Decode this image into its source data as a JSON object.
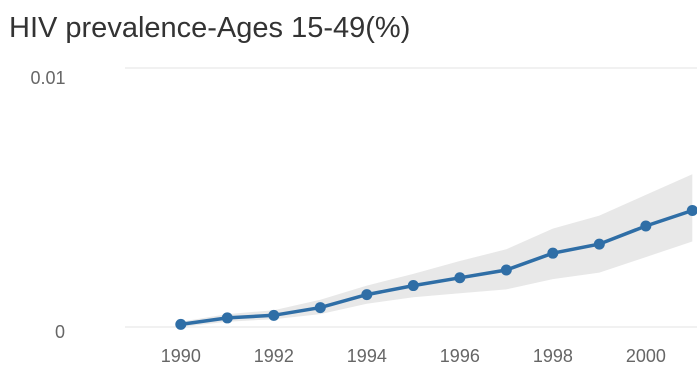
{
  "chart_data": {
    "type": "line",
    "title": "HIV prevalence-Ages 15-49(%)",
    "xlabel": "",
    "ylabel": "",
    "x": [
      1990,
      1991,
      1992,
      1993,
      1994,
      1995,
      1996,
      1997,
      1998,
      1999,
      2000,
      2001
    ],
    "series": [
      {
        "values": [
          0.0001,
          0.00035,
          0.00045,
          0.00075,
          0.00125,
          0.0016,
          0.0019,
          0.0022,
          0.00285,
          0.0032,
          0.0039,
          0.0045
        ],
        "lower": [
          0.0,
          0.0002,
          0.0003,
          0.0005,
          0.0009,
          0.00115,
          0.0013,
          0.00145,
          0.00185,
          0.0021,
          0.0027,
          0.0033
        ],
        "upper": [
          0.0002,
          0.0005,
          0.00065,
          0.00105,
          0.0016,
          0.00205,
          0.00255,
          0.003,
          0.0038,
          0.0043,
          0.0051,
          0.0059
        ]
      }
    ],
    "xlim": [
      1988.8,
      2001.1
    ],
    "ylim": [
      0,
      0.01
    ],
    "y_ticks": [
      "0.01",
      "0"
    ],
    "x_ticks": [
      1990,
      1992,
      1994,
      1996,
      1998,
      2000
    ],
    "grid": true,
    "colors": {
      "line": "#2f6ea6",
      "band": "#e8e8e8",
      "grid": "#e3e3e3"
    }
  }
}
